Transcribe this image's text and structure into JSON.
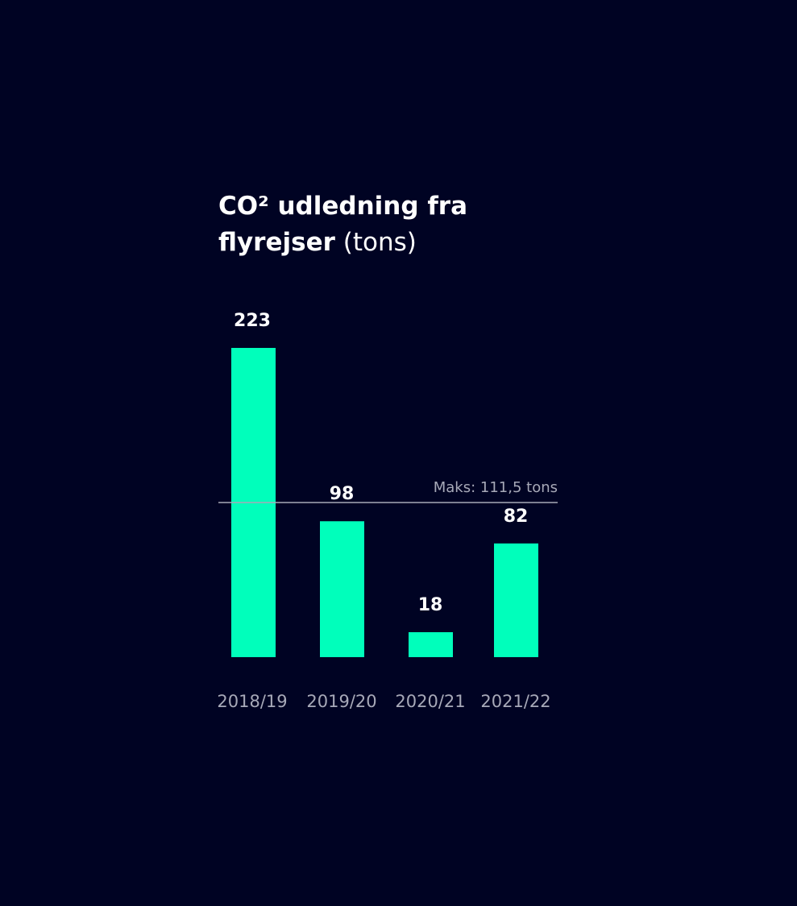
{
  "chart_data": {
    "type": "bar",
    "title_line1": "CO² udledning fra",
    "title_line2_bold": "flyrejser",
    "title_line2_light": " (tons)",
    "categories": [
      "2018/19",
      "2019/20",
      "2020/21",
      "2021/22"
    ],
    "values": [
      223,
      98,
      18,
      82
    ],
    "data_labels": [
      "223",
      "98",
      "18",
      "82"
    ],
    "reference_line": {
      "value": 111.5,
      "label": "Maks: 111,5 tons"
    },
    "ylim": [
      0,
      223
    ],
    "grid": false,
    "legend": "none"
  },
  "colors": {
    "background": "#000323",
    "bar": "#00ffbb",
    "value_label": "#ffffff",
    "category_label": "#a7a9b8",
    "reference_line": "#a7a9b8"
  }
}
